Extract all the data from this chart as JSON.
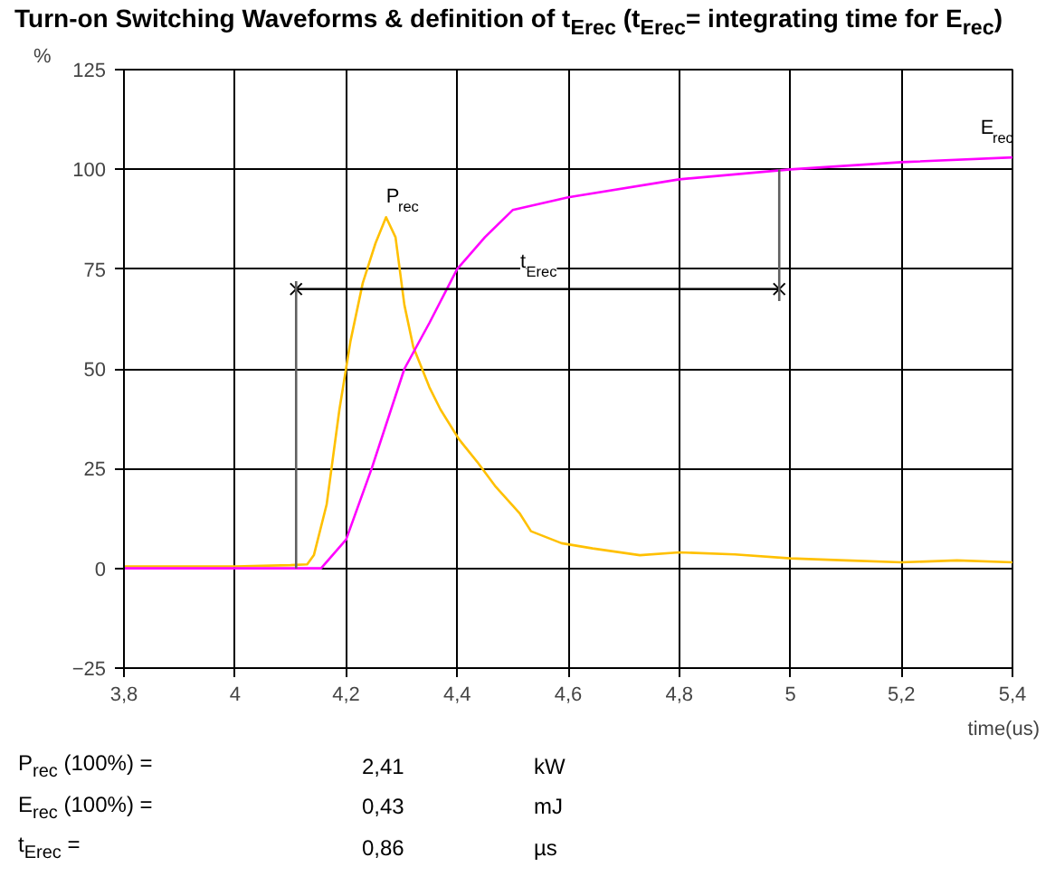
{
  "chart_data": {
    "type": "line",
    "title": "Turn-on Switching Waveforms & definition of t$_{Erec}$ (t$_{Erec}$= integrating time for E$_{rec}$)",
    "xlabel": "time(us)",
    "ylabel": "%",
    "xlim": [
      3.8,
      5.4
    ],
    "xticks": [
      {
        "value": 3.8,
        "label": "3,8"
      },
      4,
      {
        "value": 4.2,
        "label": "4,2"
      },
      {
        "value": 4.4,
        "label": "4,4"
      },
      {
        "value": 4.6,
        "label": "4,6"
      },
      {
        "value": 4.8,
        "label": "4,8"
      },
      5,
      {
        "value": 5.2,
        "label": "5,2"
      },
      {
        "value": 5.4,
        "label": "5,4"
      }
    ],
    "ylim": [
      -25,
      125
    ],
    "yticks": [
      -25,
      0,
      25,
      50,
      75,
      100,
      125
    ],
    "grid": true,
    "line_style": "solid",
    "marker": "none",
    "series": [
      {
        "name": "P$_{rec}$",
        "color": "#ffc000",
        "x": [
          3.8,
          3.9,
          4.0,
          4.1,
          4.13,
          4.142,
          4.165,
          4.188,
          4.208,
          4.23,
          4.253,
          4.272,
          4.289,
          4.305,
          4.321,
          4.35,
          4.37,
          4.403,
          4.436,
          4.468,
          4.513,
          4.533,
          4.588,
          4.644,
          4.729,
          4.8,
          4.9,
          5.0,
          5.1,
          5.2,
          5.3,
          5.4
        ],
        "values": [
          0.5,
          0.5,
          0.5,
          0.8,
          1,
          3.3,
          16,
          39.8,
          57,
          71.5,
          81.5,
          88,
          83,
          66,
          55.5,
          45.4,
          39.8,
          32.4,
          26.7,
          20.7,
          13.7,
          9.3,
          6.3,
          5,
          3.3,
          4,
          3.5,
          2.5,
          2,
          1.5,
          2,
          1.5
        ]
      },
      {
        "name": "E$_{rec}$",
        "color": "#ff00ff",
        "x": [
          3.8,
          4.0,
          4.155,
          4.2,
          4.246,
          4.305,
          4.35,
          4.4,
          4.45,
          4.5,
          4.6,
          4.8,
          5.0,
          5.2,
          5.4
        ],
        "values": [
          0,
          0,
          0,
          7.2,
          25,
          50,
          61.5,
          75,
          83,
          89.8,
          93,
          97.5,
          100,
          101.8,
          103
        ]
      },
      {
        "color": "#000000",
        "marker": "cross",
        "x": [
          4.11,
          4.98
        ],
        "values": [
          70,
          70
        ]
      },
      {
        "color": "#606060",
        "x": [
          4.11,
          4.11
        ],
        "values": [
          0,
          72
        ]
      },
      {
        "color": "#606060",
        "x": [
          4.98,
          4.98
        ],
        "values": [
          100,
          67
        ]
      }
    ],
    "annotations": [
      "t$_{Erec}$",
      "P$_{rec}$ (100%) =",
      "2,41",
      "kW",
      "E$_{rec}$ (100%) =",
      "0,43",
      "mJ",
      "t$_{Erec}$ =",
      "0,86",
      "µs"
    ]
  }
}
